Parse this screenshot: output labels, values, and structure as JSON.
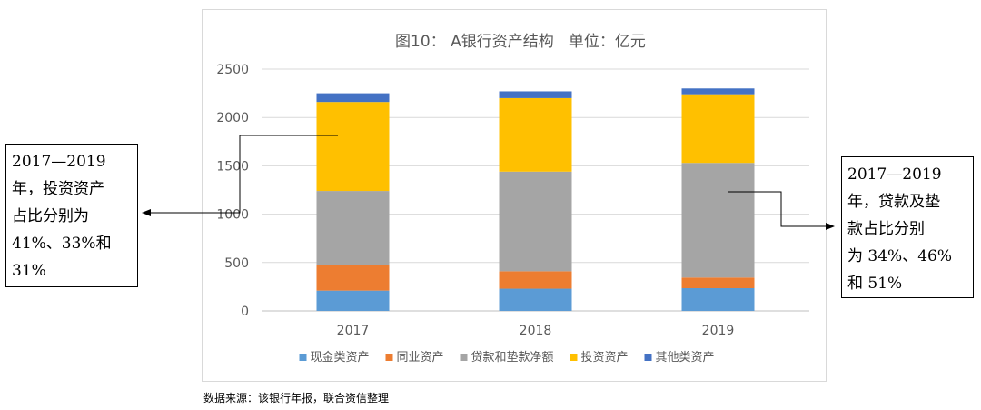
{
  "chart_data": {
    "type": "bar",
    "stacked": true,
    "title": "图10： A银行资产结构   单位：亿元",
    "categories": [
      "2017",
      "2018",
      "2019"
    ],
    "ylim": [
      0,
      2500
    ],
    "yticks": [
      "0",
      "500",
      "1000",
      "1500",
      "2000",
      "2500"
    ],
    "grid": true,
    "legend_position": "bottom",
    "series": [
      {
        "name": "现金类资产",
        "color": "#5b9bd5",
        "values": [
          210,
          230,
          235
        ]
      },
      {
        "name": "同业资产",
        "color": "#ed7d31",
        "values": [
          265,
          180,
          110
        ]
      },
      {
        "name": "贷款和垫款净额",
        "color": "#a5a5a5",
        "values": [
          765,
          1030,
          1185
        ]
      },
      {
        "name": "投资资产",
        "color": "#ffc000",
        "values": [
          920,
          760,
          710
        ]
      },
      {
        "name": "其他类资产",
        "color": "#4472c4",
        "values": [
          90,
          70,
          60
        ]
      }
    ]
  },
  "callouts": {
    "left": [
      "2017—2019",
      "年，投资资产",
      "占比分别为",
      "41%、33%和",
      "31%"
    ],
    "right": [
      "2017—2019",
      "年，贷款及垫",
      "款占比分别",
      "为 34%、46%",
      "和 51%"
    ]
  },
  "source_note": "数据来源：该银行年报，联合资信整理"
}
